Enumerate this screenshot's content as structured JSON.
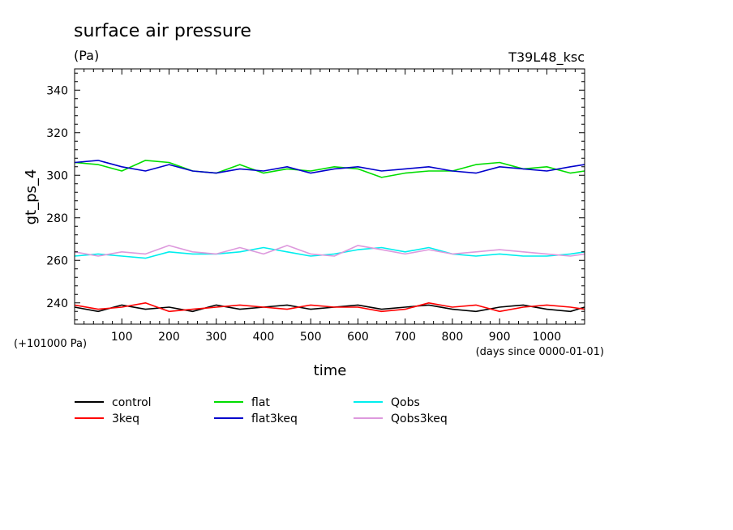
{
  "chart_data": {
    "type": "line",
    "title": "surface air pressure",
    "subtitle": "(Pa)",
    "run_label": "T39L48_ksc",
    "xlabel": "time",
    "ylabel": "gt_ps_4",
    "x_units": "(days since 0000-01-01)",
    "y_offset_label": "(+101000 Pa)",
    "xlim": [
      0,
      1080
    ],
    "ylim": [
      230,
      350
    ],
    "x_ticks": [
      100,
      200,
      300,
      400,
      500,
      600,
      700,
      800,
      900,
      1000
    ],
    "y_ticks": [
      240,
      260,
      280,
      300,
      320,
      340
    ],
    "grid": false,
    "legend_placement": "below",
    "x": [
      0,
      50,
      100,
      150,
      200,
      250,
      300,
      350,
      400,
      450,
      500,
      550,
      600,
      650,
      700,
      750,
      800,
      850,
      900,
      950,
      1000,
      1050,
      1080
    ],
    "series": [
      {
        "name": "control",
        "color": "#000000",
        "values": [
          238,
          236,
          239,
          237,
          238,
          236,
          239,
          237,
          238,
          239,
          237,
          238,
          239,
          237,
          238,
          239,
          237,
          236,
          238,
          239,
          237,
          236,
          238
        ]
      },
      {
        "name": "3keq",
        "color": "#ff0000",
        "values": [
          239,
          237,
          238,
          240,
          236,
          237,
          238,
          239,
          238,
          237,
          239,
          238,
          238,
          236,
          237,
          240,
          238,
          239,
          236,
          238,
          239,
          238,
          237
        ]
      },
      {
        "name": "flat",
        "color": "#00dd00",
        "values": [
          306,
          305,
          302,
          307,
          306,
          302,
          301,
          305,
          301,
          303,
          302,
          304,
          303,
          299,
          301,
          302,
          302,
          305,
          306,
          303,
          304,
          301,
          302
        ]
      },
      {
        "name": "flat3keq",
        "color": "#0000cc",
        "values": [
          306,
          307,
          304,
          302,
          305,
          302,
          301,
          303,
          302,
          304,
          301,
          303,
          304,
          302,
          303,
          304,
          302,
          301,
          304,
          303,
          302,
          304,
          305
        ]
      },
      {
        "name": "Qobs",
        "color": "#00eeee",
        "values": [
          262,
          263,
          262,
          261,
          264,
          263,
          263,
          264,
          266,
          264,
          262,
          263,
          265,
          266,
          264,
          266,
          263,
          262,
          263,
          262,
          262,
          263,
          264
        ]
      },
      {
        "name": "Qobs3keq",
        "color": "#dd99dd",
        "values": [
          264,
          262,
          264,
          263,
          267,
          264,
          263,
          266,
          263,
          267,
          263,
          262,
          267,
          265,
          263,
          265,
          263,
          264,
          265,
          264,
          263,
          262,
          263
        ]
      }
    ]
  }
}
